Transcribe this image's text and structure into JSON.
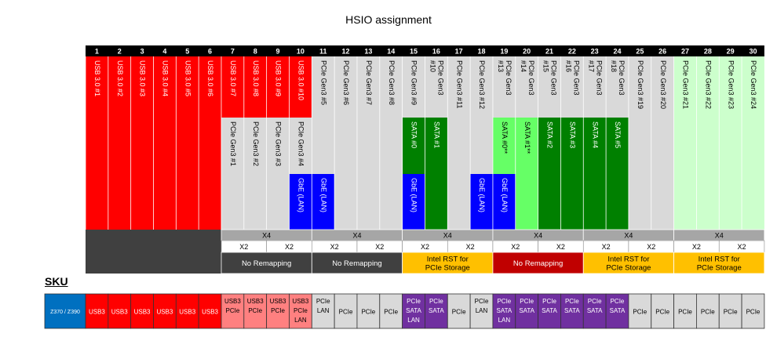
{
  "title": "HSIO assignment",
  "columns": [
    {
      "num": "1",
      "segments": [
        {
          "kind": "red",
          "texts": [
            "USB 3.0 #1"
          ]
        },
        {
          "kind": "red",
          "texts": []
        },
        {
          "kind": "red",
          "texts": []
        }
      ]
    },
    {
      "num": "2",
      "segments": [
        {
          "kind": "red",
          "texts": [
            "USB 3.0 #2"
          ]
        },
        {
          "kind": "red",
          "texts": []
        },
        {
          "kind": "red",
          "texts": []
        }
      ]
    },
    {
      "num": "3",
      "segments": [
        {
          "kind": "red",
          "texts": [
            "USB 3.0 #3"
          ]
        },
        {
          "kind": "red",
          "texts": []
        },
        {
          "kind": "red",
          "texts": []
        }
      ]
    },
    {
      "num": "4",
      "segments": [
        {
          "kind": "red",
          "texts": [
            "USB 3.0 #4"
          ]
        },
        {
          "kind": "red",
          "texts": []
        },
        {
          "kind": "red",
          "texts": []
        }
      ]
    },
    {
      "num": "5",
      "segments": [
        {
          "kind": "red",
          "texts": [
            "USB 3.0 #5"
          ]
        },
        {
          "kind": "red",
          "texts": []
        },
        {
          "kind": "red",
          "texts": []
        }
      ]
    },
    {
      "num": "6",
      "segments": [
        {
          "kind": "red",
          "texts": [
            "USB 3.0 #6"
          ]
        },
        {
          "kind": "red",
          "texts": []
        },
        {
          "kind": "red",
          "texts": []
        }
      ]
    },
    {
      "num": "7",
      "segments": [
        {
          "kind": "red",
          "texts": [
            "USB 3.0 #7"
          ]
        },
        {
          "kind": "gray",
          "texts": [
            "PCIe Gen3 #1"
          ]
        },
        {
          "kind": "gray",
          "texts": []
        }
      ]
    },
    {
      "num": "8",
      "segments": [
        {
          "kind": "red",
          "texts": [
            "USB 3.0 #8"
          ]
        },
        {
          "kind": "gray",
          "texts": [
            "PCIe Gen3 #2"
          ]
        },
        {
          "kind": "gray",
          "texts": []
        }
      ]
    },
    {
      "num": "9",
      "segments": [
        {
          "kind": "red",
          "texts": [
            "USB 3.0 #9"
          ]
        },
        {
          "kind": "gray",
          "texts": [
            "PCIe Gen3 #3"
          ]
        },
        {
          "kind": "gray",
          "texts": []
        }
      ]
    },
    {
      "num": "10",
      "segments": [
        {
          "kind": "red",
          "texts": [
            "USB 3.0 #10"
          ]
        },
        {
          "kind": "gray",
          "texts": [
            "PCIe Gen3 #4"
          ]
        },
        {
          "kind": "blue",
          "texts": [
            "GbE (LAN)"
          ]
        }
      ]
    },
    {
      "num": "11",
      "segments": [
        {
          "kind": "gray",
          "texts": [
            "PCIe Gen3 #5"
          ]
        },
        {
          "kind": "gray",
          "texts": []
        },
        {
          "kind": "blue",
          "texts": [
            "GbE (LAN)"
          ]
        }
      ]
    },
    {
      "num": "12",
      "segments": [
        {
          "kind": "gray",
          "texts": [
            "PCIe Gen3 #6"
          ]
        },
        {
          "kind": "gray",
          "texts": []
        },
        {
          "kind": "gray",
          "texts": []
        }
      ]
    },
    {
      "num": "13",
      "segments": [
        {
          "kind": "gray",
          "texts": [
            "PCIe Gen3 #7"
          ]
        },
        {
          "kind": "gray",
          "texts": []
        },
        {
          "kind": "gray",
          "texts": []
        }
      ]
    },
    {
      "num": "14",
      "segments": [
        {
          "kind": "gray",
          "texts": [
            "PCIe Gen3 #8"
          ]
        },
        {
          "kind": "gray",
          "texts": []
        },
        {
          "kind": "gray",
          "texts": []
        }
      ]
    },
    {
      "num": "15",
      "segments": [
        {
          "kind": "gray",
          "texts": [
            "PCIe Gen3 #9"
          ]
        },
        {
          "kind": "dkgreen",
          "texts": [
            "SATA #0"
          ]
        },
        {
          "kind": "blue",
          "texts": [
            "GbE (LAN)"
          ]
        }
      ]
    },
    {
      "num": "16",
      "segments": [
        {
          "kind": "gray",
          "texts": [
            "#10",
            "PCIe Gen3"
          ]
        },
        {
          "kind": "dkgreen",
          "texts": [
            "SATA #1"
          ]
        },
        {
          "kind": "dkgreen",
          "texts": []
        }
      ]
    },
    {
      "num": "17",
      "segments": [
        {
          "kind": "gray",
          "texts": [
            "PCIe Gen3 #11"
          ]
        },
        {
          "kind": "gray",
          "texts": []
        },
        {
          "kind": "gray",
          "texts": []
        }
      ]
    },
    {
      "num": "18",
      "segments": [
        {
          "kind": "gray",
          "texts": [
            "PCIe Gen3 #12"
          ]
        },
        {
          "kind": "gray",
          "texts": []
        },
        {
          "kind": "blue",
          "texts": [
            "GbE (LAN)"
          ]
        }
      ]
    },
    {
      "num": "19",
      "segments": [
        {
          "kind": "gray",
          "texts": [
            "#13",
            "PCIe Gen3"
          ]
        },
        {
          "kind": "ltgreen",
          "texts": [
            "SATA #0**"
          ]
        },
        {
          "kind": "blue",
          "texts": [
            "GbE (LAN)"
          ]
        }
      ]
    },
    {
      "num": "20",
      "segments": [
        {
          "kind": "gray",
          "texts": [
            "#14",
            "PCIe Gen3"
          ]
        },
        {
          "kind": "ltgreen",
          "texts": [
            "SATA #1**"
          ]
        },
        {
          "kind": "ltgreen",
          "texts": []
        }
      ]
    },
    {
      "num": "21",
      "segments": [
        {
          "kind": "gray",
          "texts": [
            "#15",
            "PCIe Gen3"
          ]
        },
        {
          "kind": "dkgreen",
          "texts": [
            "SATA #2"
          ]
        },
        {
          "kind": "dkgreen",
          "texts": []
        }
      ]
    },
    {
      "num": "22",
      "segments": [
        {
          "kind": "gray",
          "texts": [
            "#16",
            "PCIe Gen3"
          ]
        },
        {
          "kind": "dkgreen",
          "texts": [
            "SATA #3"
          ]
        },
        {
          "kind": "dkgreen",
          "texts": []
        }
      ]
    },
    {
      "num": "23",
      "segments": [
        {
          "kind": "gray",
          "texts": [
            "#17",
            "PCIe Gen3"
          ]
        },
        {
          "kind": "dkgreen",
          "texts": [
            "SATA #4"
          ]
        },
        {
          "kind": "dkgreen",
          "texts": []
        }
      ]
    },
    {
      "num": "24",
      "segments": [
        {
          "kind": "gray",
          "texts": [
            "#18",
            "PCIe Gen3"
          ]
        },
        {
          "kind": "dkgreen",
          "texts": [
            "SATA #5"
          ]
        },
        {
          "kind": "dkgreen",
          "texts": []
        }
      ]
    },
    {
      "num": "25",
      "segments": [
        {
          "kind": "gray",
          "texts": [
            "PCIe Gen3 #19"
          ]
        },
        {
          "kind": "gray",
          "texts": []
        },
        {
          "kind": "gray",
          "texts": []
        }
      ]
    },
    {
      "num": "26",
      "segments": [
        {
          "kind": "gray",
          "texts": [
            "PCIe Gen3 #20"
          ]
        },
        {
          "kind": "gray",
          "texts": []
        },
        {
          "kind": "gray",
          "texts": []
        }
      ]
    },
    {
      "num": "27",
      "segments": [
        {
          "kind": "mint",
          "texts": [
            "PCIe Gen3 #21"
          ]
        },
        {
          "kind": "mint",
          "texts": []
        },
        {
          "kind": "mint",
          "texts": []
        }
      ]
    },
    {
      "num": "28",
      "segments": [
        {
          "kind": "mint",
          "texts": [
            "PCIe Gen3 #22"
          ]
        },
        {
          "kind": "mint",
          "texts": []
        },
        {
          "kind": "mint",
          "texts": []
        }
      ]
    },
    {
      "num": "29",
      "segments": [
        {
          "kind": "mint",
          "texts": [
            "PCIe Gen3 #23"
          ]
        },
        {
          "kind": "mint",
          "texts": []
        },
        {
          "kind": "mint",
          "texts": []
        }
      ]
    },
    {
      "num": "30",
      "segments": [
        {
          "kind": "mint",
          "texts": [
            "PCIe Gen3 #24"
          ]
        },
        {
          "kind": "mint",
          "texts": []
        },
        {
          "kind": "mint",
          "texts": []
        }
      ]
    }
  ],
  "groups": [
    {
      "x4": "X4",
      "x2": [
        "X2",
        "X2"
      ],
      "remap": [
        "No Remapping"
      ],
      "style": "dark"
    },
    {
      "x4": "X4",
      "x2": [
        "X2",
        "X2"
      ],
      "remap": [
        "No Remapping"
      ],
      "style": "dark"
    },
    {
      "x4": "X4",
      "x2": [
        "X2",
        "X2"
      ],
      "remap": [
        "Intel RST for",
        "PCIe Storage"
      ],
      "style": "orange"
    },
    {
      "x4": "X4",
      "x2": [
        "X2",
        "X2"
      ],
      "remap": [
        "No Remapping"
      ],
      "style": "crimson"
    },
    {
      "x4": "X4",
      "x2": [
        "X2",
        "X2"
      ],
      "remap": [
        "Intel RST for",
        "PCIe Storage"
      ],
      "style": "orange"
    },
    {
      "x4": "X4",
      "x2": [
        "X2",
        "X2"
      ],
      "remap": [
        "Intel RST for",
        "PCIe Storage"
      ],
      "style": "orange"
    }
  ],
  "sku": {
    "heading": "SKU",
    "label": "Z370 / Z390",
    "cells": [
      {
        "kind": "red",
        "lines": [
          "USB3"
        ]
      },
      {
        "kind": "red",
        "lines": [
          "USB3"
        ]
      },
      {
        "kind": "red",
        "lines": [
          "USB3"
        ]
      },
      {
        "kind": "red",
        "lines": [
          "USB3"
        ]
      },
      {
        "kind": "red",
        "lines": [
          "USB3"
        ]
      },
      {
        "kind": "red",
        "lines": [
          "USB3"
        ]
      },
      {
        "kind": "salmon",
        "lines": [
          "USB3",
          "PCIe"
        ]
      },
      {
        "kind": "salmon",
        "lines": [
          "USB3",
          "PCIe"
        ]
      },
      {
        "kind": "salmon",
        "lines": [
          "USB3",
          "PCIe"
        ]
      },
      {
        "kind": "salmon",
        "lines": [
          "USB3",
          "PCIe",
          "LAN"
        ]
      },
      {
        "kind": "lgray",
        "lines": [
          "PCIe",
          "LAN"
        ]
      },
      {
        "kind": "lgray",
        "lines": [
          "PCIe"
        ]
      },
      {
        "kind": "lgray",
        "lines": [
          "PCIe"
        ]
      },
      {
        "kind": "lgray",
        "lines": [
          "PCIe"
        ]
      },
      {
        "kind": "purple",
        "lines": [
          "PCIe",
          "SATA",
          "LAN"
        ]
      },
      {
        "kind": "purple",
        "lines": [
          "PCIe",
          "SATA"
        ]
      },
      {
        "kind": "lgray",
        "lines": [
          "PCIe"
        ]
      },
      {
        "kind": "lgray",
        "lines": [
          "PCIe",
          "LAN"
        ]
      },
      {
        "kind": "purple",
        "lines": [
          "PCIe",
          "SATA",
          "LAN"
        ]
      },
      {
        "kind": "purple",
        "lines": [
          "PCIe",
          "SATA"
        ]
      },
      {
        "kind": "purple",
        "lines": [
          "PCIe",
          "SATA"
        ]
      },
      {
        "kind": "purple",
        "lines": [
          "PCIe",
          "SATA"
        ]
      },
      {
        "kind": "purple",
        "lines": [
          "PCIe",
          "SATA"
        ]
      },
      {
        "kind": "purple",
        "lines": [
          "PCIe",
          "SATA"
        ]
      },
      {
        "kind": "lgray",
        "lines": [
          "PCIe"
        ]
      },
      {
        "kind": "lgray",
        "lines": [
          "PCIe"
        ]
      },
      {
        "kind": "lgray",
        "lines": [
          "PCIe"
        ]
      },
      {
        "kind": "lgray",
        "lines": [
          "PCIe"
        ]
      },
      {
        "kind": "lgray",
        "lines": [
          "PCIe"
        ]
      },
      {
        "kind": "lgray",
        "lines": [
          "PCIe"
        ]
      }
    ]
  },
  "colors": {
    "red": "#ff0000",
    "gray": "#d9d9d9",
    "blue": "#0000ff",
    "dkgreen": "#008000",
    "ltgreen": "#66ff66",
    "mint": "#ccffcc",
    "header": "#000000",
    "bottom_block": "#404040",
    "x_row": "#a6a6a6",
    "dark": "#404040",
    "orange": "#ffc000",
    "crimson": "#c00000",
    "salmon": "#ff8080",
    "lgray": "#d9d9d9",
    "purple": "#7030a0",
    "sku_blue": "#0070c0"
  }
}
